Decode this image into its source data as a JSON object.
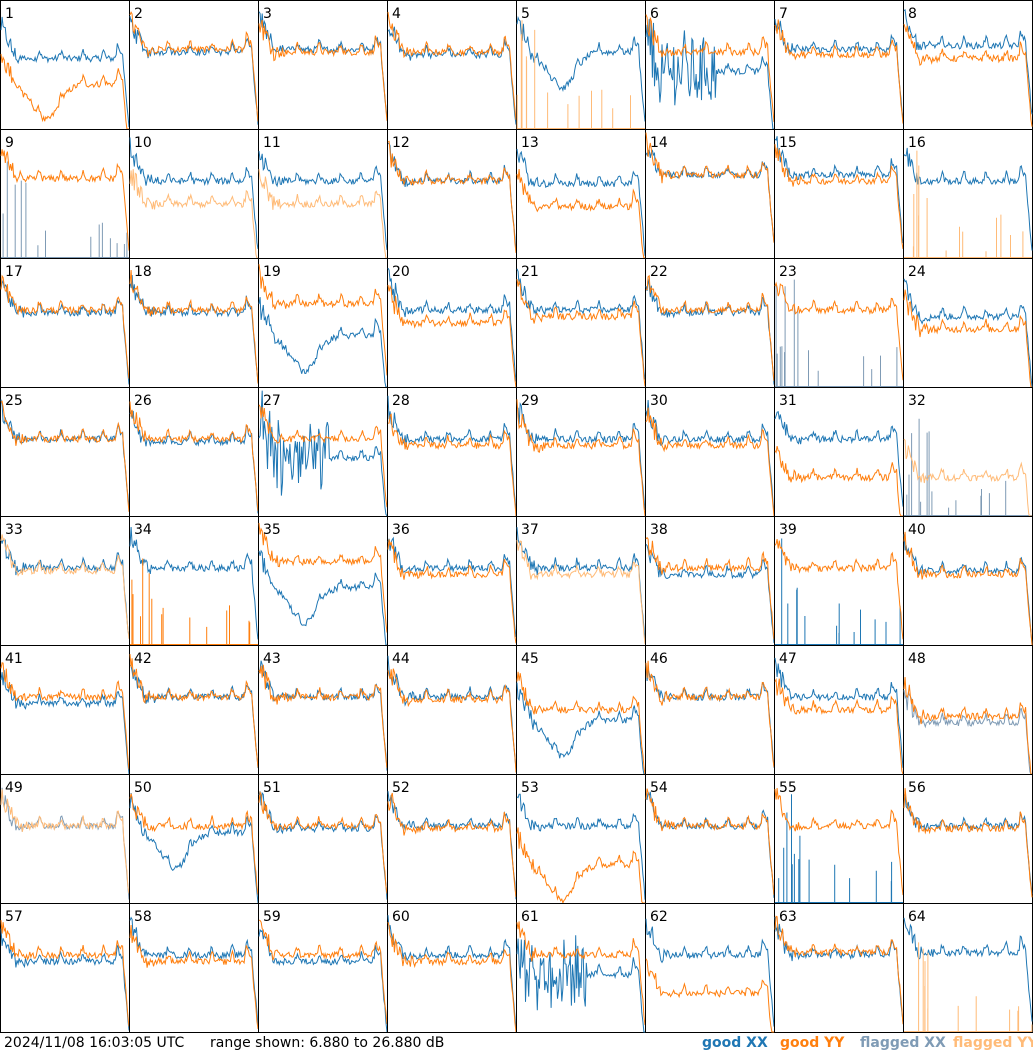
{
  "chart_data": {
    "type": "line",
    "layout": "8x8 small multiples",
    "x_axis": "frequency channel (unlabelled)",
    "y_range_db": [
      6.88,
      26.88
    ],
    "timestamp": "2024/11/08 16:03:05 UTC",
    "range_text": "range shown: 6.880 to 26.880 dB",
    "legend": [
      {
        "key": "good_xx",
        "label": "good XX",
        "color": "#1f77b4"
      },
      {
        "key": "good_yy",
        "label": "good YY",
        "color": "#ff7f0e"
      },
      {
        "key": "flagged_xx",
        "label": "flagged XX",
        "color": "#7f9bb5"
      },
      {
        "key": "flagged_yy",
        "label": "flagged YY",
        "color": "#ffbb78"
      }
    ],
    "panels": [
      {
        "label": "1",
        "xx": "good",
        "yy": "good",
        "xx_level": 0.55,
        "yy_level": 0.35,
        "xx_style": "normal",
        "yy_style": "dip"
      },
      {
        "label": "2",
        "xx": "good",
        "yy": "good",
        "xx_level": 0.6,
        "yy_level": 0.62,
        "xx_style": "normal",
        "yy_style": "normal"
      },
      {
        "label": "3",
        "xx": "good",
        "yy": "good",
        "xx_level": 0.62,
        "yy_level": 0.6,
        "xx_style": "normal",
        "yy_style": "normal"
      },
      {
        "label": "4",
        "xx": "good",
        "yy": "good",
        "xx_level": 0.58,
        "yy_level": 0.6,
        "xx_style": "normal",
        "yy_style": "normal"
      },
      {
        "label": "5",
        "xx": "good",
        "yy": "flagged",
        "xx_level": 0.6,
        "yy_level": 0.0,
        "xx_style": "dip",
        "yy_style": "spikes"
      },
      {
        "label": "6",
        "xx": "good",
        "yy": "good",
        "xx_level": 0.45,
        "yy_level": 0.6,
        "xx_style": "noisy",
        "yy_style": "normal"
      },
      {
        "label": "7",
        "xx": "good",
        "yy": "good",
        "xx_level": 0.62,
        "yy_level": 0.58,
        "xx_style": "normal",
        "yy_style": "normal"
      },
      {
        "label": "8",
        "xx": "good",
        "yy": "good",
        "xx_level": 0.65,
        "yy_level": 0.55,
        "xx_style": "normal",
        "yy_style": "normal"
      },
      {
        "label": "9",
        "xx": "flagged",
        "yy": "good",
        "xx_level": 0.0,
        "yy_level": 0.62,
        "xx_style": "spikes",
        "yy_style": "normal"
      },
      {
        "label": "10",
        "xx": "good",
        "yy": "flagged",
        "xx_level": 0.6,
        "yy_level": 0.42,
        "xx_style": "normal",
        "yy_style": "normal"
      },
      {
        "label": "11",
        "xx": "good",
        "yy": "flagged",
        "xx_level": 0.6,
        "yy_level": 0.42,
        "xx_style": "normal",
        "yy_style": "normal"
      },
      {
        "label": "12",
        "xx": "good",
        "yy": "good",
        "xx_level": 0.6,
        "yy_level": 0.6,
        "xx_style": "normal",
        "yy_style": "normal"
      },
      {
        "label": "13",
        "xx": "good",
        "yy": "good",
        "xx_level": 0.58,
        "yy_level": 0.4,
        "xx_style": "normal",
        "yy_style": "normal"
      },
      {
        "label": "14",
        "xx": "good",
        "yy": "good",
        "xx_level": 0.65,
        "yy_level": 0.65,
        "xx_style": "normal",
        "yy_style": "normal"
      },
      {
        "label": "15",
        "xx": "good",
        "yy": "good",
        "xx_level": 0.65,
        "yy_level": 0.6,
        "xx_style": "normal",
        "yy_style": "normal"
      },
      {
        "label": "16",
        "xx": "good",
        "yy": "flagged",
        "xx_level": 0.6,
        "yy_level": 0.0,
        "xx_style": "normal",
        "yy_style": "spikes"
      },
      {
        "label": "17",
        "xx": "good",
        "yy": "good",
        "xx_level": 0.58,
        "yy_level": 0.6,
        "xx_style": "normal",
        "yy_style": "normal"
      },
      {
        "label": "18",
        "xx": "good",
        "yy": "good",
        "xx_level": 0.58,
        "yy_level": 0.6,
        "xx_style": "normal",
        "yy_style": "normal"
      },
      {
        "label": "19",
        "xx": "good",
        "yy": "good",
        "xx_level": 0.4,
        "yy_level": 0.65,
        "xx_style": "dip",
        "yy_style": "normal"
      },
      {
        "label": "20",
        "xx": "good",
        "yy": "good",
        "xx_level": 0.6,
        "yy_level": 0.5,
        "xx_style": "normal",
        "yy_style": "normal"
      },
      {
        "label": "21",
        "xx": "good",
        "yy": "good",
        "xx_level": 0.6,
        "yy_level": 0.55,
        "xx_style": "normal",
        "yy_style": "normal"
      },
      {
        "label": "22",
        "xx": "good",
        "yy": "good",
        "xx_level": 0.58,
        "yy_level": 0.6,
        "xx_style": "normal",
        "yy_style": "normal"
      },
      {
        "label": "23",
        "xx": "flagged",
        "yy": "good",
        "xx_level": 0.0,
        "yy_level": 0.6,
        "xx_style": "spikes",
        "yy_style": "normal"
      },
      {
        "label": "24",
        "xx": "good",
        "yy": "good",
        "xx_level": 0.55,
        "yy_level": 0.45,
        "xx_style": "normal",
        "yy_style": "normal"
      },
      {
        "label": "25",
        "xx": "good",
        "yy": "good",
        "xx_level": 0.6,
        "yy_level": 0.6,
        "xx_style": "normal",
        "yy_style": "normal"
      },
      {
        "label": "26",
        "xx": "good",
        "yy": "good",
        "xx_level": 0.58,
        "yy_level": 0.6,
        "xx_style": "normal",
        "yy_style": "normal"
      },
      {
        "label": "27",
        "xx": "good",
        "yy": "good",
        "xx_level": 0.45,
        "yy_level": 0.6,
        "xx_style": "noisy",
        "yy_style": "normal"
      },
      {
        "label": "28",
        "xx": "good",
        "yy": "good",
        "xx_level": 0.6,
        "yy_level": 0.55,
        "xx_style": "normal",
        "yy_style": "normal"
      },
      {
        "label": "29",
        "xx": "good",
        "yy": "good",
        "xx_level": 0.6,
        "yy_level": 0.55,
        "xx_style": "normal",
        "yy_style": "normal"
      },
      {
        "label": "30",
        "xx": "good",
        "yy": "good",
        "xx_level": 0.6,
        "yy_level": 0.55,
        "xx_style": "normal",
        "yy_style": "normal"
      },
      {
        "label": "31",
        "xx": "good",
        "yy": "good",
        "xx_level": 0.6,
        "yy_level": 0.3,
        "xx_style": "normal",
        "yy_style": "normal"
      },
      {
        "label": "32",
        "xx": "flagged",
        "yy": "flagged",
        "xx_level": 0.0,
        "yy_level": 0.3,
        "xx_style": "spikes",
        "yy_style": "normal"
      },
      {
        "label": "33",
        "xx": "good",
        "yy": "flagged",
        "xx_level": 0.6,
        "yy_level": 0.58,
        "xx_style": "normal",
        "yy_style": "normal"
      },
      {
        "label": "34",
        "xx": "good",
        "yy": "good",
        "xx_level": 0.6,
        "yy_level": 0.0,
        "xx_style": "normal",
        "yy_style": "spikes"
      },
      {
        "label": "35",
        "xx": "good",
        "yy": "good",
        "xx_level": 0.45,
        "yy_level": 0.65,
        "xx_style": "dip",
        "yy_style": "normal"
      },
      {
        "label": "36",
        "xx": "good",
        "yy": "good",
        "xx_level": 0.6,
        "yy_level": 0.55,
        "xx_style": "normal",
        "yy_style": "normal"
      },
      {
        "label": "37",
        "xx": "good",
        "yy": "flagged",
        "xx_level": 0.6,
        "yy_level": 0.55,
        "xx_style": "normal",
        "yy_style": "normal"
      },
      {
        "label": "38",
        "xx": "good",
        "yy": "good",
        "xx_level": 0.55,
        "yy_level": 0.6,
        "xx_style": "normal",
        "yy_style": "normal"
      },
      {
        "label": "39",
        "xx": "good",
        "yy": "good",
        "xx_level": 0.0,
        "yy_level": 0.6,
        "xx_style": "spikes",
        "yy_style": "normal"
      },
      {
        "label": "40",
        "xx": "good",
        "yy": "good",
        "xx_level": 0.58,
        "yy_level": 0.55,
        "xx_style": "normal",
        "yy_style": "normal"
      },
      {
        "label": "41",
        "xx": "good",
        "yy": "good",
        "xx_level": 0.55,
        "yy_level": 0.6,
        "xx_style": "normal",
        "yy_style": "normal"
      },
      {
        "label": "42",
        "xx": "good",
        "yy": "good",
        "xx_level": 0.6,
        "yy_level": 0.6,
        "xx_style": "normal",
        "yy_style": "normal"
      },
      {
        "label": "43",
        "xx": "good",
        "yy": "good",
        "xx_level": 0.6,
        "yy_level": 0.6,
        "xx_style": "normal",
        "yy_style": "normal"
      },
      {
        "label": "44",
        "xx": "good",
        "yy": "good",
        "xx_level": 0.6,
        "yy_level": 0.58,
        "xx_style": "normal",
        "yy_style": "normal"
      },
      {
        "label": "45",
        "xx": "good",
        "yy": "good",
        "xx_level": 0.42,
        "yy_level": 0.5,
        "xx_style": "dip",
        "yy_style": "normal"
      },
      {
        "label": "46",
        "xx": "good",
        "yy": "good",
        "xx_level": 0.6,
        "yy_level": 0.6,
        "xx_style": "normal",
        "yy_style": "normal"
      },
      {
        "label": "47",
        "xx": "good",
        "yy": "good",
        "xx_level": 0.6,
        "yy_level": 0.5,
        "xx_style": "normal",
        "yy_style": "normal"
      },
      {
        "label": "48",
        "xx": "flagged",
        "yy": "good",
        "xx_level": 0.4,
        "yy_level": 0.45,
        "xx_style": "normal",
        "yy_style": "normal"
      },
      {
        "label": "49",
        "xx": "flagged",
        "yy": "flagged",
        "xx_level": 0.6,
        "yy_level": 0.6,
        "xx_style": "normal",
        "yy_style": "normal"
      },
      {
        "label": "50",
        "xx": "good",
        "yy": "good",
        "xx_level": 0.55,
        "yy_level": 0.6,
        "xx_style": "dip",
        "yy_style": "normal"
      },
      {
        "label": "51",
        "xx": "good",
        "yy": "good",
        "xx_level": 0.58,
        "yy_level": 0.6,
        "xx_style": "normal",
        "yy_style": "normal"
      },
      {
        "label": "52",
        "xx": "good",
        "yy": "good",
        "xx_level": 0.6,
        "yy_level": 0.58,
        "xx_style": "normal",
        "yy_style": "normal"
      },
      {
        "label": "53",
        "xx": "good",
        "yy": "good",
        "xx_level": 0.6,
        "yy_level": 0.3,
        "xx_style": "normal",
        "yy_style": "dip"
      },
      {
        "label": "54",
        "xx": "good",
        "yy": "good",
        "xx_level": 0.6,
        "yy_level": 0.6,
        "xx_style": "normal",
        "yy_style": "normal"
      },
      {
        "label": "55",
        "xx": "good",
        "yy": "good",
        "xx_level": 0.0,
        "yy_level": 0.6,
        "xx_style": "spikes",
        "yy_style": "normal"
      },
      {
        "label": "56",
        "xx": "good",
        "yy": "good",
        "xx_level": 0.6,
        "yy_level": 0.58,
        "xx_style": "normal",
        "yy_style": "normal"
      },
      {
        "label": "57",
        "xx": "good",
        "yy": "good",
        "xx_level": 0.55,
        "yy_level": 0.6,
        "xx_style": "normal",
        "yy_style": "normal"
      },
      {
        "label": "58",
        "xx": "good",
        "yy": "good",
        "xx_level": 0.6,
        "yy_level": 0.55,
        "xx_style": "normal",
        "yy_style": "normal"
      },
      {
        "label": "59",
        "xx": "good",
        "yy": "good",
        "xx_level": 0.55,
        "yy_level": 0.6,
        "xx_style": "normal",
        "yy_style": "normal"
      },
      {
        "label": "60",
        "xx": "good",
        "yy": "good",
        "xx_level": 0.6,
        "yy_level": 0.55,
        "xx_style": "normal",
        "yy_style": "normal"
      },
      {
        "label": "61",
        "xx": "good",
        "yy": "good",
        "xx_level": 0.45,
        "yy_level": 0.6,
        "xx_style": "noisy",
        "yy_style": "normal"
      },
      {
        "label": "62",
        "xx": "good",
        "yy": "good",
        "xx_level": 0.6,
        "yy_level": 0.3,
        "xx_style": "normal",
        "yy_style": "normal"
      },
      {
        "label": "63",
        "xx": "good",
        "yy": "good",
        "xx_level": 0.6,
        "yy_level": 0.62,
        "xx_style": "normal",
        "yy_style": "normal"
      },
      {
        "label": "64",
        "xx": "good",
        "yy": "flagged",
        "xx_level": 0.62,
        "yy_level": 0.0,
        "xx_style": "normal",
        "yy_style": "spikes"
      }
    ]
  }
}
